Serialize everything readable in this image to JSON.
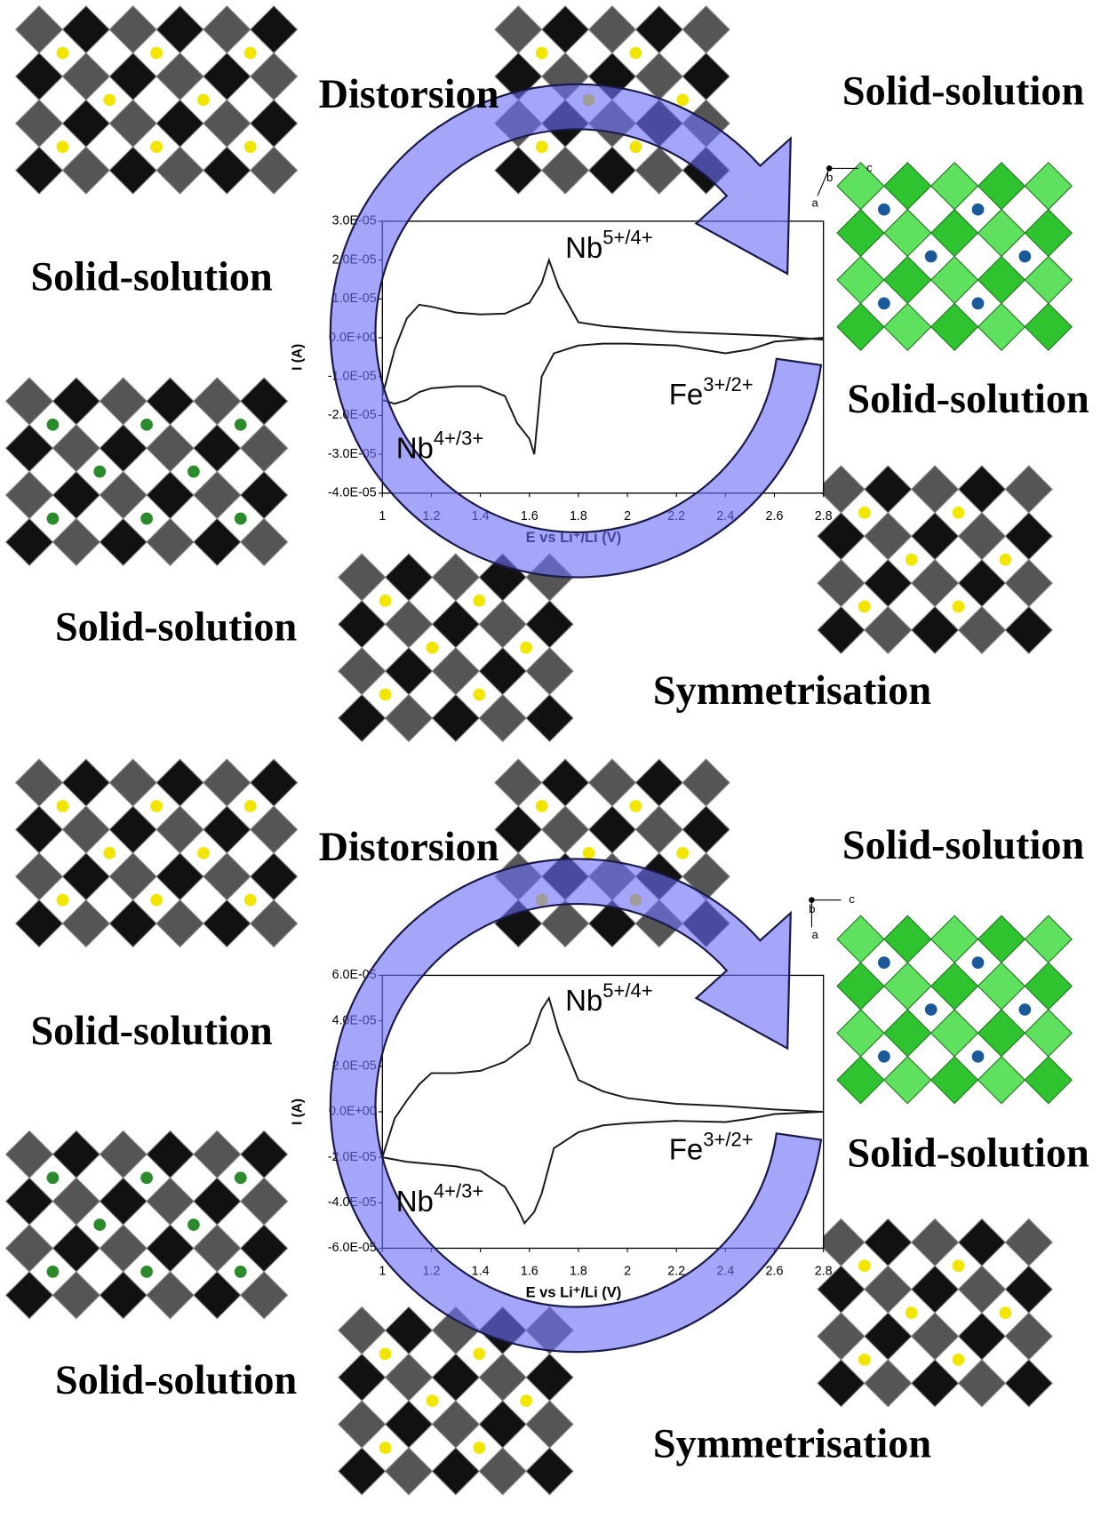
{
  "chart_data": [
    {
      "type": "line",
      "x_label": "E vs Li⁺/Li (V)",
      "y_label": "I (A)",
      "xlim": [
        1,
        2.8
      ],
      "xticks": [
        1,
        1.2,
        1.4,
        1.6,
        1.8,
        2,
        2.2,
        2.4,
        2.6,
        2.8
      ],
      "ylim": [
        -4e-05,
        3e-05
      ],
      "yticks": [
        {
          "value": -4e-05,
          "label": "-4.0E-05"
        },
        {
          "value": -3e-05,
          "label": "-3.0E-05"
        },
        {
          "value": -2e-05,
          "label": "-2.0E-05"
        },
        {
          "value": -1e-05,
          "label": "-1.0E-05"
        },
        {
          "value": 0,
          "label": "0.0E+00"
        },
        {
          "value": 1e-05,
          "label": "1.0E-05"
        },
        {
          "value": 2e-05,
          "label": "2.0E-05"
        },
        {
          "value": 3e-05,
          "label": "3.0E-05"
        }
      ],
      "series": [
        {
          "color": "#1a1a1a",
          "x": [
            1.0,
            1.05,
            1.1,
            1.15,
            1.2,
            1.3,
            1.4,
            1.5,
            1.6,
            1.65,
            1.68,
            1.72,
            1.8,
            1.9,
            2.0,
            2.2,
            2.4,
            2.6,
            2.8
          ],
          "values": [
            -1.5e-05,
            -3e-06,
            5e-06,
            8.5e-06,
            8e-06,
            6.5e-06,
            6e-06,
            6.2e-06,
            9e-06,
            1.4e-05,
            2e-05,
            1.3e-05,
            4e-06,
            3e-06,
            2.5e-06,
            1.5e-06,
            1e-06,
            5e-07,
            -5e-07
          ]
        },
        {
          "color": "#1a1a1a",
          "x": [
            1.0,
            1.05,
            1.1,
            1.15,
            1.2,
            1.3,
            1.4,
            1.5,
            1.55,
            1.6,
            1.62,
            1.65,
            1.7,
            1.8,
            1.9,
            2.0,
            2.2,
            2.4,
            2.5,
            2.6,
            2.8
          ],
          "values": [
            -1.6e-05,
            -1.7e-05,
            -1.6e-05,
            -1.4e-05,
            -1.3e-05,
            -1.25e-05,
            -1.25e-05,
            -1.5e-05,
            -2.2e-05,
            -2.6e-05,
            -3e-05,
            -1e-05,
            -4e-06,
            -2e-06,
            -1.5e-06,
            -1.5e-06,
            -2e-06,
            -4e-06,
            -3e-06,
            -1e-06,
            0
          ]
        }
      ],
      "annotations": [
        {
          "text": "Nb",
          "sup": "5+/4+"
        },
        {
          "text": "Fe",
          "sup": "3+/2+"
        },
        {
          "text": "Nb",
          "sup": "4+/3+"
        }
      ],
      "phase_labels": [
        "Distorsion",
        "Solid-solution",
        "Solid-solution",
        "Solid-solution",
        "Solid-solution",
        "Symmetrisation"
      ]
    },
    {
      "type": "line",
      "x_label": "E vs Li⁺/Li (V)",
      "y_label": "I (A)",
      "xlim": [
        1,
        2.8
      ],
      "xticks": [
        1,
        1.2,
        1.4,
        1.6,
        1.8,
        2,
        2.2,
        2.4,
        2.6,
        2.8
      ],
      "ylim": [
        -6e-05,
        6e-05
      ],
      "yticks": [
        {
          "value": -6e-05,
          "label": "-6.0E-05"
        },
        {
          "value": -4e-05,
          "label": "-4.0E-05"
        },
        {
          "value": -2e-05,
          "label": "-2.0E-05"
        },
        {
          "value": 0,
          "label": "0.0E+00"
        },
        {
          "value": 2e-05,
          "label": "2.0E-05"
        },
        {
          "value": 4e-05,
          "label": "4.0E-05"
        },
        {
          "value": 6e-05,
          "label": "6.0E-05"
        }
      ],
      "series": [
        {
          "color": "#1a1a1a",
          "x": [
            1.0,
            1.05,
            1.1,
            1.15,
            1.2,
            1.3,
            1.4,
            1.5,
            1.6,
            1.65,
            1.68,
            1.72,
            1.8,
            1.9,
            2.0,
            2.2,
            2.4,
            2.6,
            2.8
          ],
          "values": [
            -2e-05,
            -3e-06,
            5e-06,
            1.2e-05,
            1.7e-05,
            1.7e-05,
            1.8e-05,
            2.2e-05,
            3e-05,
            4.5e-05,
            5e-05,
            3.5e-05,
            1.4e-05,
            9e-06,
            6e-06,
            3.5e-06,
            2.5e-06,
            1e-06,
            0
          ]
        },
        {
          "color": "#1a1a1a",
          "x": [
            1.0,
            1.1,
            1.2,
            1.3,
            1.4,
            1.5,
            1.55,
            1.58,
            1.62,
            1.65,
            1.7,
            1.8,
            1.9,
            2.0,
            2.2,
            2.4,
            2.5,
            2.6,
            2.8
          ],
          "values": [
            -2e-05,
            -2.2e-05,
            -2.3e-05,
            -2.4e-05,
            -2.6e-05,
            -3.3e-05,
            -4.2e-05,
            -4.9e-05,
            -4.4e-05,
            -3.6e-05,
            -1.6e-05,
            -9e-06,
            -6e-06,
            -5e-06,
            -4e-06,
            -4.5e-06,
            -3e-06,
            -1e-06,
            0
          ]
        }
      ],
      "annotations": [
        {
          "text": "Nb",
          "sup": "5+/4+"
        },
        {
          "text": "Fe",
          "sup": "3+/2+"
        },
        {
          "text": "Nb",
          "sup": "4+/3+"
        }
      ],
      "phase_labels": [
        "Distorsion",
        "Solid-solution",
        "Solid-solution",
        "Solid-solution",
        "Solid-solution",
        "Symmetrisation"
      ]
    }
  ],
  "structure_axes_labels": [
    "a",
    "b",
    "c"
  ]
}
